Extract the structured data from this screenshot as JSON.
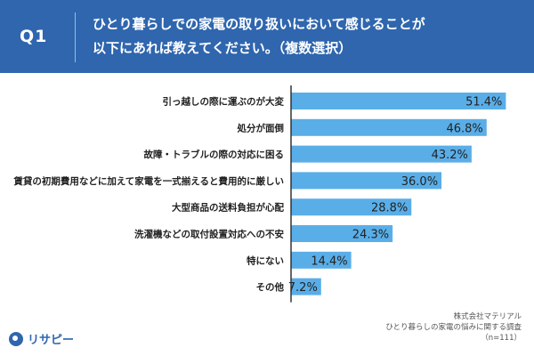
{
  "header": {
    "question_no": "Q1",
    "question_line1": "ひとり暮らしでの家電の取り扱いにおいて感じることが",
    "question_line2": "以下にあれば教えてください。（複数選択）"
  },
  "colors": {
    "header_bg": "#2f66ae",
    "bar": "#5aaee8",
    "axis": "#333333"
  },
  "chart_data": {
    "type": "bar",
    "orientation": "horizontal",
    "categories": [
      "引っ越しの際に運ぶのが大変",
      "処分が面倒",
      "故障・トラブルの際の対応に困る",
      "賃貸の初期費用などに加えて家電を一式揃えると費用的に厳しい",
      "大型商品の送料負担が心配",
      "洗濯機などの取付設置対応への不安",
      "特にない",
      "その他"
    ],
    "values": [
      51.4,
      46.8,
      43.2,
      36.0,
      28.8,
      24.3,
      14.4,
      7.2
    ],
    "value_labels": [
      "51.4%",
      "46.8%",
      "43.2%",
      "36.0%",
      "28.8%",
      "24.3%",
      "14.4%",
      "7.2%"
    ],
    "xlim": [
      0,
      56
    ],
    "grid": false,
    "legend": "none"
  },
  "source": {
    "line1": "株式会社マテリアル",
    "line2": "ひとり暮らしの家電の悩みに関する調査",
    "line3": "（n=111）"
  },
  "logo": {
    "icon": "pin-icon",
    "text": "リサピー"
  }
}
